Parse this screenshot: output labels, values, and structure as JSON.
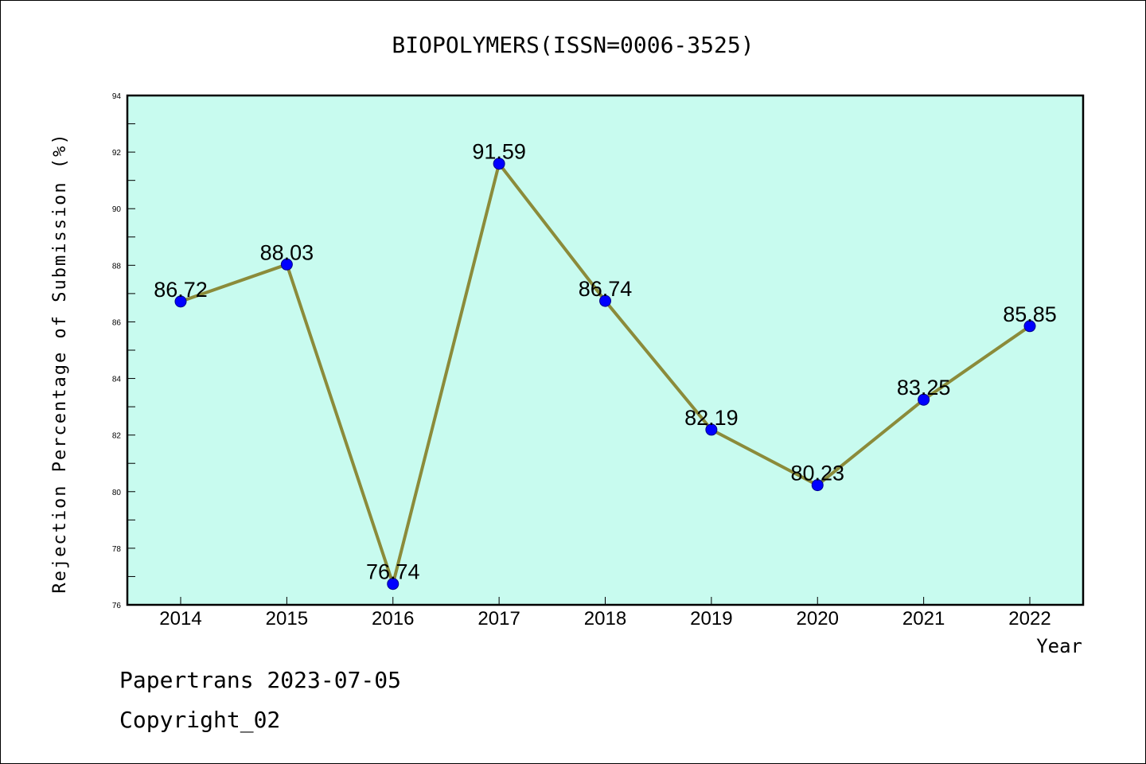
{
  "chart_data": {
    "type": "line",
    "title": "BIOPOLYMERS(ISSN=0006-3525)",
    "xlabel": "Year",
    "ylabel": "Rejection Percentage of Submission (%)",
    "categories": [
      "2014",
      "2015",
      "2016",
      "2017",
      "2018",
      "2019",
      "2020",
      "2021",
      "2022"
    ],
    "series": [
      {
        "values": [
          86.72,
          88.03,
          76.74,
          91.59,
          86.74,
          82.19,
          80.23,
          83.25,
          85.85
        ]
      }
    ],
    "data_labels": [
      "86.72",
      "88.03",
      "76.74",
      "91.59",
      "86.74",
      "82.19",
      "80.23",
      "83.25",
      "85.85"
    ],
    "ylim": [
      76,
      94
    ],
    "yticks": [
      "76",
      "78",
      "80",
      "82",
      "84",
      "86",
      "88",
      "90",
      "92",
      "94"
    ],
    "grid": false,
    "colors": {
      "plot_bg": "#c8fbef",
      "line": "#8b8b3a",
      "marker": "#0000ff"
    }
  },
  "footer": {
    "line1": "Papertrans 2023-07-05",
    "line2": "Copyright_02"
  }
}
